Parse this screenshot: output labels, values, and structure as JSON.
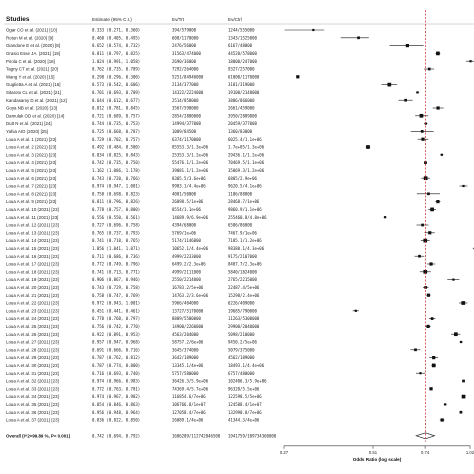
{
  "chart_data": {
    "type": "forest",
    "headers": {
      "studies": "Studies",
      "estimate": "Estimate (95% C.I.)",
      "ev_trt": "Ev/Trt",
      "ev_ctrl": "Ev/Ctrl"
    },
    "xlabel": "Odds Ratio (log scale)",
    "x_scale": "log",
    "x_ticks": [
      "0.27",
      "0.51",
      "0.74",
      "1.02"
    ],
    "x_tick_values": [
      0.27,
      0.51,
      0.74,
      1.02
    ],
    "xlim": [
      0.27,
      1.02
    ],
    "reference_line": 0.742,
    "rows": [
      {
        "study": "Ogar CO et al. (2021) [10]",
        "est": 0.333,
        "lo": 0.271,
        "hi": 0.36,
        "ci": "0.333 (0.271, 0.360)",
        "ev_trt": "394/579000",
        "ev_ctrl": "1244/555000"
      },
      {
        "study": "Rotun M et al. (2020) [9]",
        "est": 0.46,
        "lo": 0.405,
        "hi": 0.495,
        "ci": "0.460 (0.405, 0.495)",
        "ev_trt": "600/1170000",
        "ev_ctrl": "1343/1525000"
      },
      {
        "study": "Giandone E et al. (2020) [8]",
        "est": 0.652,
        "est_label": "0.652",
        "lo": 0.574,
        "hi": 0.732,
        "ci": "0.652 (0.574, 0.732)",
        "ev_trt": "2476/56000",
        "ev_ctrl": "6167/48000"
      },
      {
        "study": "Grasio Esse JA. (2021) [19]",
        "est": 0.811,
        "lo": 0.797,
        "hi": 0.825,
        "ci": "0.811 (0.797, 0.825)",
        "ev_trt": "31563/474000",
        "ev_ctrl": "44520/578000"
      },
      {
        "study": "Pirola C et al. (2020) [18]",
        "est": 1.024,
        "lo": 0.991,
        "hi": 1.058,
        "ci": "1.024 (0.991, 1.058)",
        "ev_trt": "2690/36000",
        "ev_ctrl": "18000/247000"
      },
      {
        "study": "Tagny CT et al. (2021) [20]",
        "est": 0.762,
        "lo": 0.735,
        "hi": 0.789,
        "ci": "0.762 (0.735, 0.789)",
        "ev_trt": "7292/264000",
        "ev_ctrl": "9327/257000"
      },
      {
        "study": "Wang Y et al. (2020) [15]",
        "est": 0.298,
        "lo": 0.296,
        "hi": 0.3,
        "ci": "0.298 (0.296, 0.300)",
        "ev_trt": "5251/84940000",
        "ev_ctrl": "61000/1170000"
      },
      {
        "study": "Guglietta A et al. (2021) [16]",
        "est": 0.573,
        "lo": 0.542,
        "hi": 0.606,
        "ci": "0.573 (0.542, 0.606)",
        "ev_trt": "2134/377000",
        "ev_ctrl": "3181/319000"
      },
      {
        "study": "Sitaroto CL et al. (2021) [21]",
        "est": 0.701,
        "lo": 0.693,
        "hi": 0.709,
        "ci": "0.701 (0.693, 0.709)",
        "ev_trt": "14322/2224000",
        "ev_ctrl": "19100/2148000"
      },
      {
        "study": "Kandasamy D et al. (2021) [12]",
        "est": 0.644,
        "lo": 0.612,
        "hi": 0.677,
        "ci": "0.644 (0.612, 0.677)",
        "ev_trt": "2514/858000",
        "ev_ctrl": "3886/866000"
      },
      {
        "study": "Goya NB et al. (2020) [13]",
        "est": 0.812,
        "lo": 0.781,
        "hi": 0.845,
        "ci": "0.812 (0.781, 0.845)",
        "ev_trt": "3567/590000",
        "ev_ctrl": "2661/459000"
      },
      {
        "study": "Damulak OD et al. (2020) [14]",
        "est": 0.721,
        "lo": 0.689,
        "hi": 0.757,
        "ci": "0.721 (0.689, 0.757)",
        "ev_trt": "2854/2880000",
        "ev_ctrl": "3950/2889000"
      },
      {
        "study": "Dutt N et al. (2021) [24]",
        "est": 0.744,
        "lo": 0.735,
        "hi": 0.753,
        "ci": "0.744 (0.735, 0.753)",
        "ev_trt": "14994/377000",
        "ev_ctrl": "20459/377000"
      },
      {
        "study": "Yahia AIO (2020) [25]",
        "est": 0.725,
        "lo": 0.668,
        "hi": 0.787,
        "ci": "0.725 (0.668, 0.787)",
        "ev_trt": "1009/84500",
        "ev_ctrl": "1360/83000"
      },
      {
        "study": "Loua A et al. 1 (2021) [23]",
        "est": 0.729,
        "lo": 0.702,
        "hi": 0.757,
        "ci": "0.729 (0.702, 0.757)",
        "ev_trt": "6374/1170000",
        "ev_ctrl": "6025.4/1.1e+06"
      },
      {
        "study": "Loua A et al. 2 (2021) [23]",
        "est": 0.492,
        "lo": 0.484,
        "hi": 0.5,
        "ci": "0.492 (0.484, 0.500)",
        "ev_trt": "85553.3/1.3e+06",
        "ev_ctrl": "1.7e+05/1.3e+06"
      },
      {
        "study": "Loua A et al. 3 (2021) [23]",
        "est": 0.834,
        "lo": 0.825,
        "hi": 0.843,
        "ci": "0.834 (0.825, 0.843)",
        "ev_trt": "25353.3/1.2e+06",
        "ev_ctrl": "29436.1/1.2e+06"
      },
      {
        "study": "Loua A et al. 4 (2021) [23]",
        "est": 0.742,
        "lo": 0.735,
        "hi": 0.75,
        "ci": "0.742 (0.735, 0.750)",
        "ev_trt": "55476.1/1.2e+06",
        "ev_ctrl": "70469.5/1.1e+06"
      },
      {
        "study": "Loua A et al. 5 (2021) [23]",
        "est": 1.162,
        "lo": 1.086,
        "hi": 1.178,
        "ci": "1.162 (1.086, 1.178)",
        "ev_trt": "39081.1/1.2e+06",
        "ev_ctrl": "35069.3/1.2e+06"
      },
      {
        "study": "Loua A et al. 6 (2021) [23]",
        "est": 0.743,
        "lo": 0.72,
        "hi": 0.766,
        "ci": "0.743 (0.720, 0.766)",
        "ev_trt": "8305.5/3.6e+06",
        "ev_ctrl": "6805/2.9e+06"
      },
      {
        "study": "Loua A et al. 7 (2021) [23]",
        "est": 0.974,
        "lo": 0.947,
        "hi": 1.001,
        "ci": "0.974 (0.947, 1.001)",
        "ev_trt": "9903.1/4.4e+06",
        "ev_ctrl": "9620.5/4.1e+06"
      },
      {
        "study": "Loua A et al. 8 (2021) [23]",
        "est": 0.758,
        "lo": 0.698,
        "hi": 0.823,
        "ci": "0.758 (0.698, 0.823)",
        "ev_trt": "4001/50000",
        "ev_ctrl": "1106/88000"
      },
      {
        "study": "Loua A et al. 9 (2021) [23]",
        "est": 0.811,
        "lo": 0.796,
        "hi": 0.826,
        "ci": "0.811 (0.796, 0.826)",
        "ev_trt": "26098.5/1e+06",
        "ev_ctrl": "28468.7/1e+06"
      },
      {
        "study": "Loua A et al. 10 (2021) [23]",
        "est": 0.778,
        "lo": 0.757,
        "hi": 0.8,
        "ci": "0.778 (0.757, 0.800)",
        "ev_trt": "8554/1.1e+06",
        "ev_ctrl": "9860.9/1.1e+06"
      },
      {
        "study": "Loua A et al. 11 (2021) [23]",
        "est": 0.556,
        "lo": 0.55,
        "hi": 0.561,
        "ci": "0.556 (0.550, 0.561)",
        "ev_trt": "14689.9/6.9e+06",
        "ev_ctrl": "255460.8/4.8e+06"
      },
      {
        "study": "Loua A et al. 12 (2021) [23]",
        "est": 0.727,
        "lo": 0.696,
        "hi": 0.758,
        "ci": "0.727 (0.696, 0.758)",
        "ev_trt": "4394/68000",
        "ev_ctrl": "6586/86000"
      },
      {
        "study": "Loua A et al. 13 (2021) [23]",
        "est": 0.765,
        "lo": 0.737,
        "hi": 0.793,
        "ci": "0.765 (0.737, 0.793)",
        "ev_trt": "5769/1e+06",
        "ev_ctrl": "7467.9/1e+06"
      },
      {
        "study": "Loua A et al. 14 (2021) [23]",
        "est": 0.741,
        "lo": 0.718,
        "hi": 0.765,
        "ci": "0.741 (0.718, 0.765)",
        "ev_trt": "5174/1146000",
        "ev_ctrl": "7185.1/1.2e+06"
      },
      {
        "study": "Loua A et al. 15 (2021) [23]",
        "est": 1.056,
        "lo": 1.041,
        "hi": 1.071,
        "ci": "1.056 (1.041, 1.071)",
        "ev_trt": "10652.1/4.4e+06",
        "ev_ctrl": "98380.1/4.3e+06"
      },
      {
        "study": "Loua A et al. 16 (2021) [23]",
        "est": 0.711,
        "lo": 0.686,
        "hi": 0.736,
        "ci": "0.711 (0.686, 0.736)",
        "ev_trt": "4999/2233000",
        "ev_ctrl": "9175/2107000"
      },
      {
        "study": "Loua A et al. 17 (2021) [23]",
        "est": 0.772,
        "lo": 0.749,
        "hi": 0.796,
        "ci": "0.772 (0.749, 0.796)",
        "ev_trt": "6499.2/2.3e+06",
        "ev_ctrl": "8407.7/2.3e+06"
      },
      {
        "study": "Loua A et al. 18 (2021) [23]",
        "est": 0.741,
        "lo": 0.713,
        "hi": 0.771,
        "ci": "0.741 (0.713, 0.771)",
        "ev_trt": "4999/2111000",
        "ev_ctrl": "5840/1824000"
      },
      {
        "study": "Loua A et al. 19 (2021) [23]",
        "est": 0.906,
        "lo": 0.867,
        "hi": 0.946,
        "ci": "0.906 (0.867, 0.946)",
        "ev_trt": "2550/2214000",
        "ev_ctrl": "2765/2215000"
      },
      {
        "study": "Loua A et al. 20 (2021) [23]",
        "est": 0.743,
        "lo": 0.729,
        "hi": 0.758,
        "ci": "0.743 (0.729, 0.758)",
        "ev_trt": "16783.2/5e+06",
        "ev_ctrl": "22487.4/5e+06"
      },
      {
        "study": "Loua A et al. 21 (2021) [23]",
        "est": 0.758,
        "lo": 0.747,
        "hi": 0.769,
        "ci": "0.758 (0.747, 0.769)",
        "ev_trt": "14763.2/3.6e+06",
        "ev_ctrl": "15298/2.4e+06"
      },
      {
        "study": "Loua A et al. 22 (2021) [23]",
        "est": 0.972,
        "lo": 0.943,
        "hi": 1.001,
        "ci": "0.972 (0.943, 1.001)",
        "ev_trt": "5966/404000",
        "ev_ctrl": "6226/409000"
      },
      {
        "study": "Loua A et al. 23 (2021) [23]",
        "est": 0.451,
        "lo": 0.441,
        "hi": 0.461,
        "ci": "0.451 (0.441, 0.461)",
        "ev_trt": "13727/5170000",
        "ev_ctrl": "19685/790000"
      },
      {
        "study": "Loua A et al. 24 (2021) [23]",
        "est": 0.778,
        "lo": 0.76,
        "hi": 0.797,
        "ci": "0.778 (0.760, 0.797)",
        "ev_trt": "8809/5500000",
        "ev_ctrl": "11263/5300000"
      },
      {
        "study": "Loua A et al. 25 (2021) [23]",
        "est": 0.756,
        "lo": 0.742,
        "hi": 0.77,
        "ci": "0.756 (0.742, 0.770)",
        "ev_trt": "14900/2260000",
        "ev_ctrl": "29900/2040000"
      },
      {
        "study": "Loua A et al. 26 (2021) [23]",
        "est": 0.922,
        "lo": 0.891,
        "hi": 0.953,
        "ci": "0.922 (0.891, 0.953)",
        "ev_trt": "4563/204000",
        "ev_ctrl": "5098/210000"
      },
      {
        "study": "Loua A et al. 27 (2021) [23]",
        "est": 0.957,
        "lo": 0.947,
        "hi": 0.968,
        "ci": "0.957 (0.947, 0.968)",
        "ev_trt": "58757.2/6e+06",
        "ev_ctrl": "9450.2/5e+06"
      },
      {
        "study": "Loua A et al. 28 (2021) [23]",
        "est": 0.691,
        "lo": 0.666,
        "hi": 0.716,
        "ci": "0.691 (0.666, 0.716)",
        "ev_trt": "3645/374000",
        "ev_ctrl": "5079/375000"
      },
      {
        "study": "Loua A et al. 29 (2021) [23]",
        "est": 0.787,
        "lo": 0.762,
        "hi": 0.812,
        "ci": "0.787 (0.762, 0.812)",
        "ev_trt": "3642/189000",
        "ev_ctrl": "4562/189000"
      },
      {
        "study": "Loua A et al. 30 (2021) [23]",
        "est": 0.787,
        "lo": 0.774,
        "hi": 0.8,
        "ci": "0.787 (0.774, 0.800)",
        "ev_trt": "13345.1/4e+06",
        "ev_ctrl": "18493.1/4.4e+06"
      },
      {
        "study": "Loua A et al. 31 (2021) [23]",
        "est": 0.716,
        "lo": 0.693,
        "hi": 0.74,
        "ci": "0.716 (0.693, 0.740)",
        "ev_trt": "5757/580000",
        "ev_ctrl": "6757/480000"
      },
      {
        "study": "Loua A et al. 32 (2021) [23]",
        "est": 0.974,
        "lo": 0.966,
        "hi": 0.983,
        "ci": "0.974 (0.966, 0.983)",
        "ev_trt": "36426.3/5.9e+06",
        "ev_ctrl": "102406.3/5.9e+06"
      },
      {
        "study": "Loua A et al. 33 (2021) [23]",
        "est": 0.772,
        "lo": 0.763,
        "hi": 0.781,
        "ci": "0.772 (0.763, 0.781)",
        "ev_trt": "74369.4/5.7e+06",
        "ev_ctrl": "96320/5.5e+06"
      },
      {
        "study": "Loua A et al. 34 (2021) [23]",
        "est": 0.974,
        "lo": 0.967,
        "hi": 0.982,
        "ci": "0.974 (0.967, 0.982)",
        "ev_trt": "116854.6/7e+06",
        "ev_ctrl": "122598.5/5e+06"
      },
      {
        "study": "Loua A et al. 35 (2021) [23]",
        "est": 0.854,
        "lo": 0.846,
        "hi": 0.863,
        "ci": "0.854 (0.846, 0.863)",
        "ev_trt": "106766.8/1e+07",
        "ev_ctrl": "124588.4/1e+07"
      },
      {
        "study": "Loua A et al. 36 (2021) [23]",
        "est": 0.956,
        "lo": 0.948,
        "hi": 0.964,
        "ci": "0.956 (0.948, 0.964)",
        "ev_trt": "127058.4/7e+06",
        "ev_ctrl": "132990.8/7e+06"
      },
      {
        "study": "Loua A et al. 37 (2021) [23]",
        "est": 0.836,
        "lo": 0.822,
        "hi": 0.85,
        "ci": "0.836 (0.822, 0.850)",
        "ev_trt": "26089.1/4e+06",
        "ev_ctrl": "41344.3/4e+06"
      }
    ],
    "overall": {
      "label": "Overall (I^2=99.89 %, P< 0.001)",
      "est": 0.742,
      "lo": 0.694,
      "hi": 0.792,
      "ci": "0.742 (0.694, 0.792)",
      "ev_trt": "1606209/112742846500",
      "ev_ctrl": "1941759/109734360000"
    },
    "colors": {
      "ink": "#111111",
      "reference": "#cc2222",
      "axis": "#333333"
    }
  }
}
